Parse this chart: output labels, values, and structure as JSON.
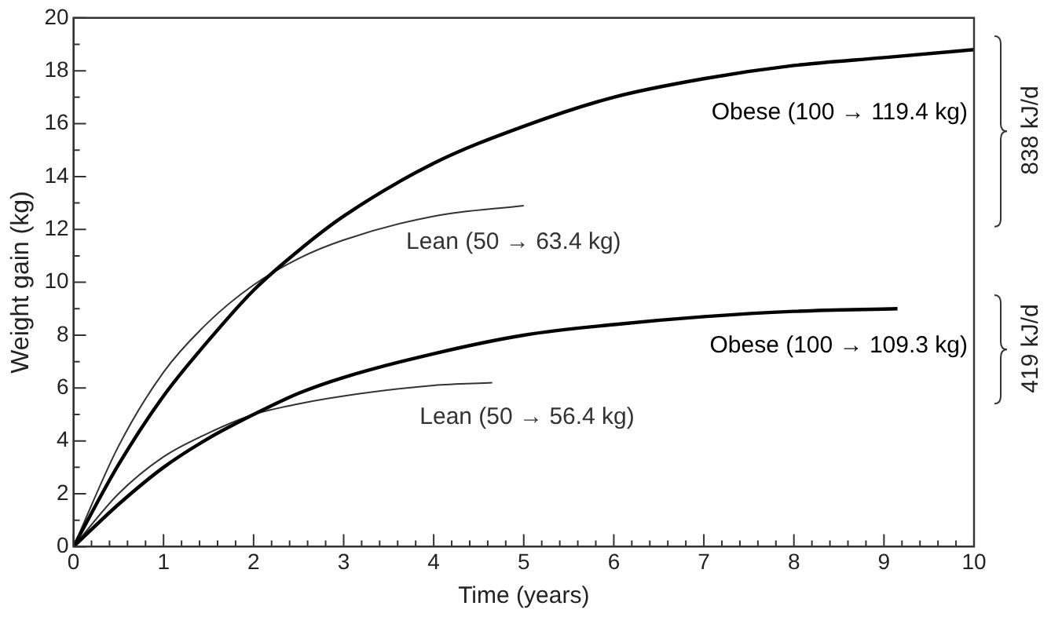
{
  "chart_data": {
    "type": "line",
    "xlabel": "Time (years)",
    "ylabel": "Weight gain (kg)",
    "xlim": [
      0,
      10
    ],
    "ylim": [
      0,
      20
    ],
    "xticks": [
      0,
      1,
      2,
      3,
      4,
      5,
      6,
      7,
      8,
      9,
      10
    ],
    "yticks": [
      0,
      2,
      4,
      6,
      8,
      10,
      12,
      14,
      16,
      18,
      20
    ],
    "grid": false,
    "legend": false,
    "marker": "none",
    "line_style": "solid",
    "series": [
      {
        "name": "Obese (100 → 119.4 kg)",
        "color": "#000000",
        "x": [
          0,
          0.5,
          1,
          1.5,
          2,
          2.5,
          3,
          4,
          5,
          6,
          7,
          8,
          9,
          10
        ],
        "values": [
          0,
          3.1,
          5.7,
          7.8,
          9.7,
          11.2,
          12.5,
          14.5,
          15.9,
          17.0,
          17.7,
          18.2,
          18.5,
          18.8
        ]
      },
      {
        "name": "Lean (50 → 63.4 kg)",
        "color": "#333333",
        "x": [
          0,
          0.5,
          1,
          1.5,
          2,
          2.5,
          3,
          4,
          5
        ],
        "values": [
          0,
          3.8,
          6.6,
          8.5,
          9.9,
          10.9,
          11.6,
          12.5,
          12.9
        ]
      },
      {
        "name": "Obese (100 → 109.3 kg)",
        "color": "#000000",
        "x": [
          0,
          0.5,
          1,
          1.5,
          2,
          2.5,
          3,
          4,
          5,
          6,
          7,
          8,
          9.15
        ],
        "values": [
          0,
          1.6,
          3.0,
          4.1,
          5.0,
          5.8,
          6.4,
          7.3,
          8.0,
          8.4,
          8.7,
          8.9,
          9.0
        ]
      },
      {
        "name": "Lean (50 → 56.4 kg)",
        "color": "#333333",
        "x": [
          0,
          0.5,
          1,
          1.5,
          2,
          2.5,
          3,
          4,
          4.65
        ],
        "values": [
          0,
          2.0,
          3.4,
          4.3,
          5.0,
          5.4,
          5.7,
          6.1,
          6.2
        ]
      }
    ],
    "annotations": [
      "838 kJ/d",
      "419 kJ/d"
    ]
  }
}
